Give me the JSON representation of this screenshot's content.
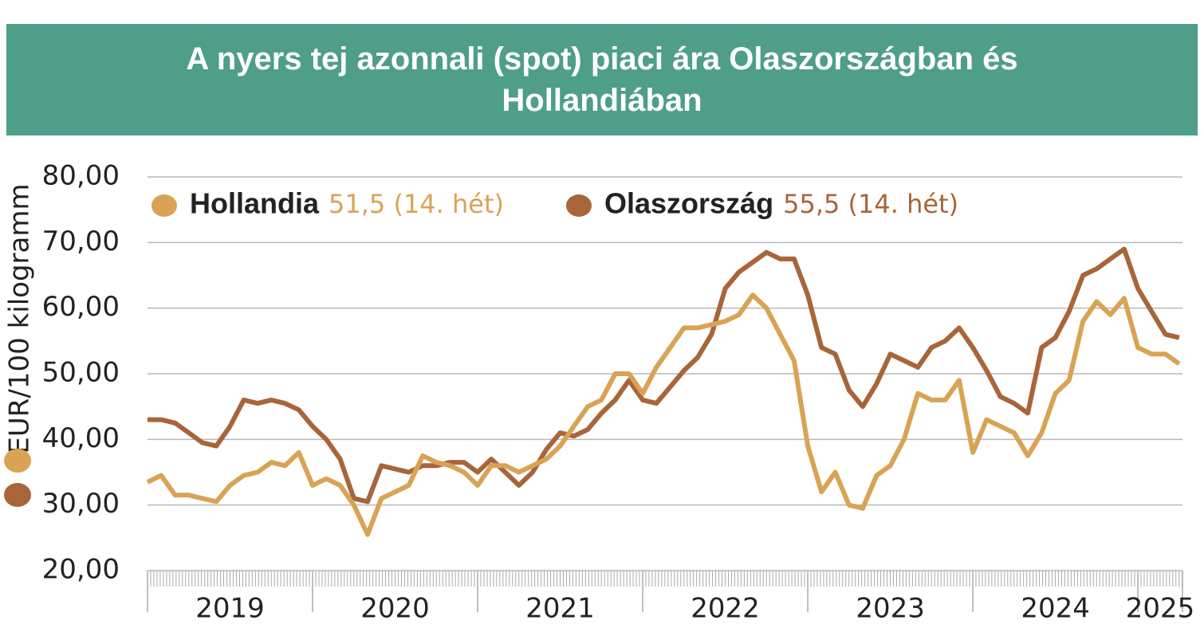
{
  "chart_data": {
    "type": "line",
    "title": "A nyers tej azonnali (spot) piaci ára Olaszországban és Hollandiában",
    "y_label": "EUR/100 kilogramm",
    "categories": [
      "2019",
      "2020",
      "2021",
      "2022",
      "2023",
      "2024",
      "2025"
    ],
    "x": [
      2019.0,
      2019.083,
      2019.167,
      2019.25,
      2019.333,
      2019.417,
      2019.5,
      2019.583,
      2019.667,
      2019.75,
      2019.833,
      2019.917,
      2020.0,
      2020.083,
      2020.167,
      2020.25,
      2020.333,
      2020.417,
      2020.5,
      2020.583,
      2020.667,
      2020.75,
      2020.833,
      2020.917,
      2021.0,
      2021.083,
      2021.167,
      2021.25,
      2021.333,
      2021.417,
      2021.5,
      2021.583,
      2021.667,
      2021.75,
      2021.833,
      2021.917,
      2022.0,
      2022.083,
      2022.167,
      2022.25,
      2022.333,
      2022.417,
      2022.5,
      2022.583,
      2022.667,
      2022.75,
      2022.833,
      2022.917,
      2023.0,
      2023.083,
      2023.167,
      2023.25,
      2023.333,
      2023.417,
      2023.5,
      2023.583,
      2023.667,
      2023.75,
      2023.833,
      2023.917,
      2024.0,
      2024.083,
      2024.167,
      2024.25,
      2024.333,
      2024.417,
      2024.5,
      2024.583,
      2024.667,
      2024.75,
      2024.833,
      2024.917,
      2025.0,
      2025.083,
      2025.167,
      2025.25
    ],
    "series": [
      {
        "name": "Hollandia",
        "color": "#d9a354",
        "latest_label": "51,5 (14. hét)",
        "values": [
          33.5,
          34.5,
          31.5,
          31.5,
          31,
          30.5,
          33,
          34.5,
          35,
          36.5,
          36,
          38,
          33,
          34,
          33,
          30,
          25.5,
          31,
          32,
          33,
          37.5,
          36.5,
          36,
          35,
          33,
          36,
          36,
          35,
          36,
          37,
          39,
          42,
          45,
          46,
          50,
          50,
          47,
          51,
          54,
          57,
          57,
          57.5,
          58,
          59,
          62,
          60,
          56,
          52,
          39,
          32,
          35,
          30,
          29.5,
          34.5,
          36,
          40,
          47,
          46,
          46,
          49,
          38,
          43,
          42,
          41,
          37.5,
          41,
          47,
          49,
          58,
          61,
          59,
          61.5,
          54,
          53,
          53,
          51.5
        ]
      },
      {
        "name": "Olaszország",
        "color": "#a8653a",
        "latest_label": "55,5 (14. hét)",
        "values": [
          43,
          43,
          42.5,
          41,
          39.5,
          39,
          42,
          46,
          45.5,
          46,
          45.5,
          44.5,
          42,
          40,
          37,
          31,
          30.5,
          36,
          35.5,
          35,
          36,
          36,
          36.5,
          36.5,
          35,
          37,
          35,
          33,
          35,
          38.5,
          41,
          40.5,
          41.5,
          44,
          46,
          49,
          46,
          45.5,
          48,
          50.5,
          52.5,
          56,
          63,
          65.5,
          67,
          68.5,
          67.5,
          67.5,
          62,
          54,
          53,
          47.5,
          45,
          48.5,
          53,
          52,
          51,
          54,
          55,
          57,
          54,
          50.5,
          46.5,
          45.5,
          44,
          54,
          55.5,
          59.5,
          65,
          66,
          67.5,
          69,
          63,
          59.5,
          56,
          55.5
        ]
      }
    ],
    "xlim": [
      2019,
      2025.27
    ],
    "xticks": [
      2019,
      2020,
      2021,
      2022,
      2023,
      2024,
      2025
    ],
    "ylim": [
      20,
      80
    ],
    "yticks": [
      {
        "value": 20,
        "label": "20,00"
      },
      {
        "value": 30,
        "label": "30,00"
      },
      {
        "value": 40,
        "label": "40,00"
      },
      {
        "value": 50,
        "label": "50,00"
      },
      {
        "value": 60,
        "label": "60,00"
      },
      {
        "value": 70,
        "label": "70,00"
      },
      {
        "value": 80,
        "label": "80,00"
      }
    ],
    "grid": true
  }
}
